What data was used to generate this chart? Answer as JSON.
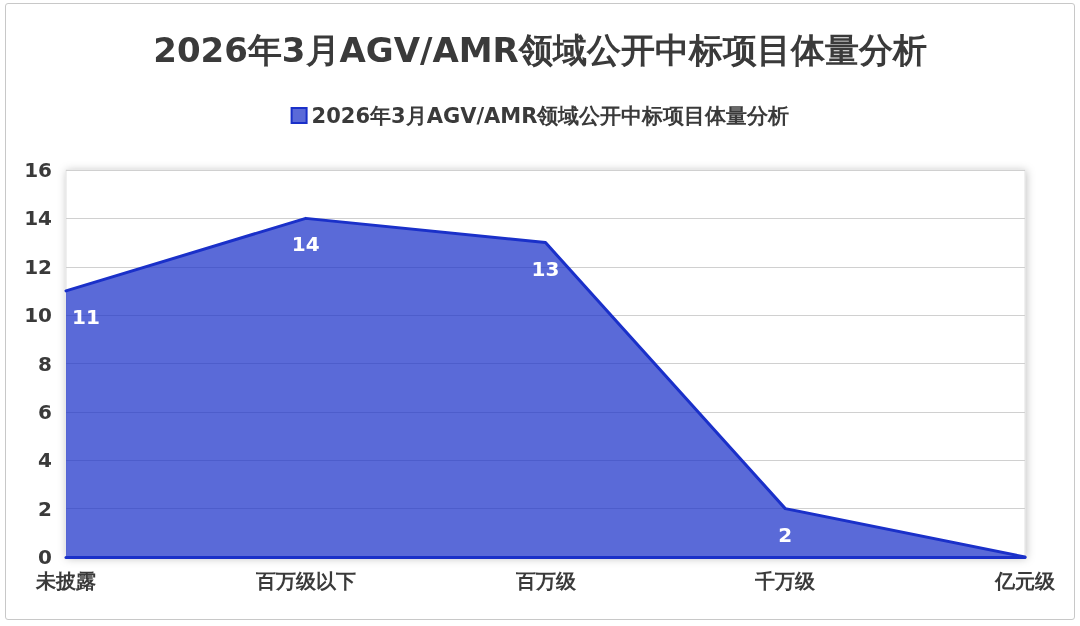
{
  "chart_data": {
    "type": "area",
    "title": "2026年3月AGV/AMR领域公开中标项目体量分析",
    "categories": [
      "未披露",
      "百万级以下",
      "百万级",
      "千万级",
      "亿元级"
    ],
    "series": [
      {
        "name": "2026年3月AGV/AMR领域公开中标项目体量分析",
        "color": "#1a30c9",
        "values": [
          11,
          14,
          13,
          2,
          0
        ],
        "value_labels": [
          "11",
          "14",
          "13",
          "2",
          null
        ]
      }
    ],
    "ylim": [
      0,
      16
    ],
    "yticks": [
      0,
      2,
      4,
      6,
      8,
      10,
      12,
      14,
      16
    ],
    "grid": "y",
    "legend": "top",
    "marker": "none",
    "line_style": "solid"
  }
}
